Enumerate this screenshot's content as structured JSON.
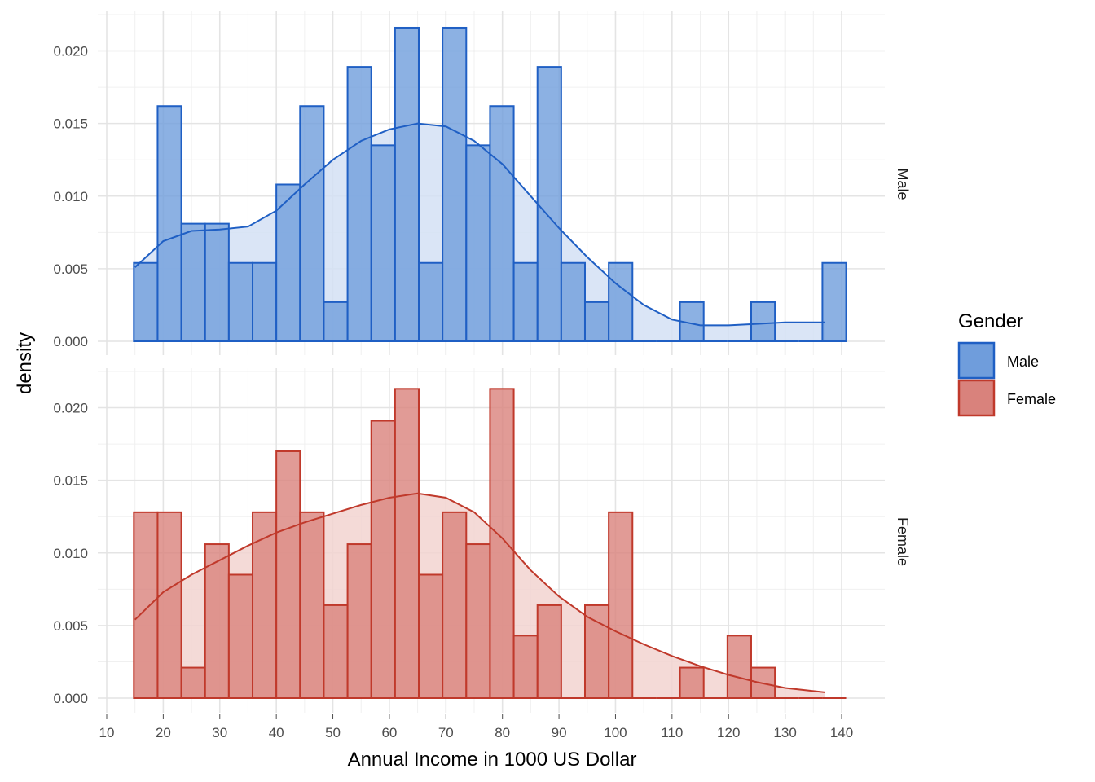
{
  "chart_data": {
    "type": "bar",
    "subtype": "faceted histogram with density overlay",
    "xlabel": "Annual Income in 1000 US Dollar",
    "ylabel": "density",
    "xlim": [
      10,
      142
    ],
    "ylim": [
      0,
      0.0225
    ],
    "x_ticks": [
      10,
      20,
      30,
      40,
      50,
      60,
      70,
      80,
      90,
      100,
      110,
      120,
      130,
      140
    ],
    "y_ticks": [
      0.0,
      0.005,
      0.01,
      0.015,
      0.02
    ],
    "y_tick_labels": [
      "0.000",
      "0.005",
      "0.010",
      "0.015",
      "0.020"
    ],
    "bin_start": 14.8,
    "bin_width": 4.2,
    "grid": true,
    "legend": {
      "title": "Gender",
      "position": "right",
      "entries": [
        {
          "label": "Male",
          "fill": "#6f9ddc",
          "stroke": "#1f5fc4"
        },
        {
          "label": "Female",
          "fill": "#d9827c",
          "stroke": "#c0392b"
        }
      ]
    },
    "facets": [
      {
        "name": "Male",
        "fill": "#6f9ddc",
        "stroke": "#1f5fc4",
        "density_fill": "#d3e0f4",
        "bin_values": [
          0.0054,
          0.0162,
          0.0081,
          0.0081,
          0.0054,
          0.0054,
          0.0108,
          0.0162,
          0.0027,
          0.0189,
          0.0135,
          0.0216,
          0.0054,
          0.0216,
          0.0135,
          0.0162,
          0.0054,
          0.0189,
          0.0054,
          0.0027,
          0.0054,
          0,
          0,
          0.0027,
          0,
          0,
          0.0027,
          0,
          0,
          0.0054
        ],
        "density_x": [
          15,
          20,
          25,
          30,
          35,
          40,
          45,
          50,
          55,
          60,
          65,
          70,
          75,
          80,
          85,
          90,
          95,
          100,
          105,
          110,
          115,
          120,
          125,
          130,
          137
        ],
        "density_y": [
          0.0051,
          0.0069,
          0.0076,
          0.0077,
          0.0079,
          0.009,
          0.0108,
          0.0125,
          0.0138,
          0.0146,
          0.015,
          0.0148,
          0.0138,
          0.0122,
          0.01,
          0.0078,
          0.0058,
          0.004,
          0.0025,
          0.0015,
          0.0011,
          0.0011,
          0.0012,
          0.0013,
          0.0013
        ]
      },
      {
        "name": "Female",
        "fill": "#d9827c",
        "stroke": "#c0392b",
        "density_fill": "#f2d3d0",
        "bin_values": [
          0.0128,
          0.0128,
          0.0021,
          0.0106,
          0.0085,
          0.0128,
          0.017,
          0.0128,
          0.0064,
          0.0106,
          0.0191,
          0.0213,
          0.0085,
          0.0128,
          0.0106,
          0.0213,
          0.0043,
          0.0064,
          0,
          0.0064,
          0.0128,
          0,
          0,
          0.0021,
          0,
          0.0043,
          0.0021,
          0,
          0,
          0
        ],
        "density_x": [
          15,
          20,
          25,
          30,
          35,
          40,
          45,
          50,
          55,
          60,
          65,
          70,
          75,
          80,
          85,
          90,
          95,
          100,
          105,
          110,
          115,
          120,
          125,
          130,
          137
        ],
        "density_y": [
          0.0054,
          0.0073,
          0.0085,
          0.0095,
          0.0105,
          0.0114,
          0.0121,
          0.0127,
          0.0133,
          0.0138,
          0.0141,
          0.0138,
          0.0128,
          0.011,
          0.0088,
          0.007,
          0.0056,
          0.0046,
          0.0037,
          0.0029,
          0.0022,
          0.0016,
          0.0011,
          0.0007,
          0.0004
        ]
      }
    ]
  }
}
